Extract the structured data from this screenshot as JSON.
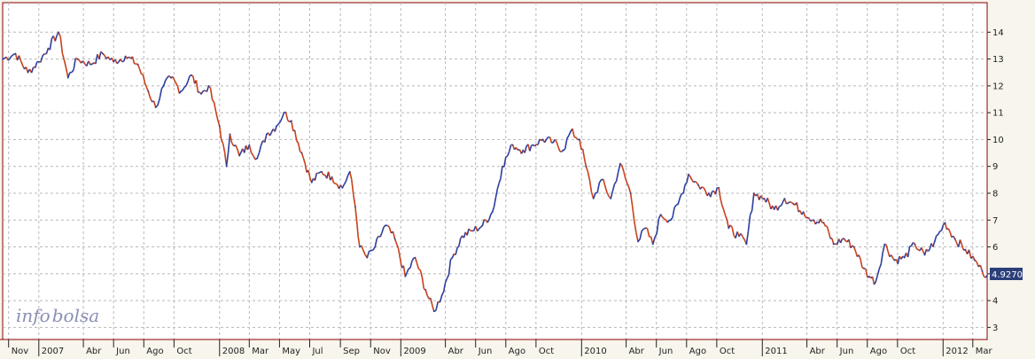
{
  "logo": {
    "part1": "info",
    "part2": "bolsa"
  },
  "last_price": "4.9270",
  "colors": {
    "background": "#f7f5ec",
    "plot_background": "#ffffff",
    "up": "#2c3e9e",
    "down": "#c8401a",
    "frame": "#8b0000",
    "grid": "#b8b8b8",
    "price_box": "#2b3f7a"
  },
  "chart_data": {
    "type": "line",
    "title": "",
    "xlabel": "",
    "ylabel": "",
    "ylim": [
      2.55,
      15.1
    ],
    "yticks": [
      3,
      4,
      5,
      6,
      7,
      8,
      9,
      10,
      11,
      12,
      13,
      14
    ],
    "x_range": [
      "2006-10-20",
      "2012-03-30"
    ],
    "x_tick_labels": [
      {
        "date": "2006-11-01",
        "label": "Nov",
        "year_start": false
      },
      {
        "date": "2007-01-01",
        "label": "2007",
        "year_start": true
      },
      {
        "date": "2007-04-01",
        "label": "Abr",
        "year_start": false
      },
      {
        "date": "2007-06-01",
        "label": "Jun",
        "year_start": false
      },
      {
        "date": "2007-08-01",
        "label": "Ago",
        "year_start": false
      },
      {
        "date": "2007-10-01",
        "label": "Oct",
        "year_start": false
      },
      {
        "date": "2008-01-01",
        "label": "2008",
        "year_start": true
      },
      {
        "date": "2008-03-01",
        "label": "Mar",
        "year_start": false
      },
      {
        "date": "2008-05-01",
        "label": "May",
        "year_start": false
      },
      {
        "date": "2008-07-01",
        "label": "Jul",
        "year_start": false
      },
      {
        "date": "2008-09-01",
        "label": "Sep",
        "year_start": false
      },
      {
        "date": "2008-11-01",
        "label": "Nov",
        "year_start": false
      },
      {
        "date": "2009-01-01",
        "label": "2009",
        "year_start": true
      },
      {
        "date": "2009-04-01",
        "label": "Abr",
        "year_start": false
      },
      {
        "date": "2009-06-01",
        "label": "Jun",
        "year_start": false
      },
      {
        "date": "2009-08-01",
        "label": "Ago",
        "year_start": false
      },
      {
        "date": "2009-10-01",
        "label": "Oct",
        "year_start": false
      },
      {
        "date": "2010-01-01",
        "label": "2010",
        "year_start": true
      },
      {
        "date": "2010-04-01",
        "label": "Abr",
        "year_start": false
      },
      {
        "date": "2010-06-01",
        "label": "Jun",
        "year_start": false
      },
      {
        "date": "2010-08-01",
        "label": "Ago",
        "year_start": false
      },
      {
        "date": "2010-10-01",
        "label": "Oct",
        "year_start": false
      },
      {
        "date": "2011-01-01",
        "label": "2011",
        "year_start": true
      },
      {
        "date": "2011-04-01",
        "label": "Abr",
        "year_start": false
      },
      {
        "date": "2011-06-01",
        "label": "Jun",
        "year_start": false
      },
      {
        "date": "2011-08-01",
        "label": "Ago",
        "year_start": false
      },
      {
        "date": "2011-10-01",
        "label": "Oct",
        "year_start": false
      },
      {
        "date": "2012-01-01",
        "label": "2012",
        "year_start": true
      },
      {
        "date": "2012-03-01",
        "label": "Mar",
        "year_start": false
      }
    ],
    "grid": true,
    "y_axis_position": "right",
    "series": [
      {
        "x": [
          "2006-10-20",
          "2006-11-15",
          "2006-12-10",
          "2007-01-01",
          "2007-01-20",
          "2007-02-10",
          "2007-03-01",
          "2007-03-20",
          "2007-04-15",
          "2007-05-10",
          "2007-06-01",
          "2007-06-25",
          "2007-07-20",
          "2007-08-10",
          "2007-08-25",
          "2007-09-10",
          "2007-09-25",
          "2007-10-15",
          "2007-11-05",
          "2007-11-25",
          "2007-12-10",
          "2008-01-01",
          "2008-01-15",
          "2008-01-22",
          "2008-02-10",
          "2008-03-01",
          "2008-03-17",
          "2008-04-05",
          "2008-04-25",
          "2008-05-10",
          "2008-05-25",
          "2008-06-15",
          "2008-07-05",
          "2008-07-25",
          "2008-08-15",
          "2008-09-05",
          "2008-09-20",
          "2008-10-01",
          "2008-10-10",
          "2008-10-25",
          "2008-11-10",
          "2008-12-01",
          "2008-12-20",
          "2009-01-10",
          "2009-01-30",
          "2009-02-20",
          "2009-03-09",
          "2009-03-25",
          "2009-04-15",
          "2009-05-05",
          "2009-05-25",
          "2009-06-15",
          "2009-07-05",
          "2009-07-25",
          "2009-08-15",
          "2009-09-05",
          "2009-09-25",
          "2009-10-15",
          "2009-11-05",
          "2009-11-25",
          "2009-12-10",
          "2009-12-28",
          "2010-01-10",
          "2010-01-25",
          "2010-02-10",
          "2010-03-01",
          "2010-03-20",
          "2010-04-10",
          "2010-04-25",
          "2010-05-10",
          "2010-05-25",
          "2010-06-10",
          "2010-06-30",
          "2010-07-15",
          "2010-08-05",
          "2010-08-25",
          "2010-09-15",
          "2010-10-05",
          "2010-10-25",
          "2010-11-15",
          "2010-11-30",
          "2010-12-15",
          "2011-01-05",
          "2011-01-25",
          "2011-02-15",
          "2011-03-05",
          "2011-03-25",
          "2011-04-15",
          "2011-05-05",
          "2011-05-25",
          "2011-06-15",
          "2011-07-05",
          "2011-07-25",
          "2011-08-05",
          "2011-08-18",
          "2011-09-05",
          "2011-09-25",
          "2011-10-15",
          "2011-11-05",
          "2011-11-25",
          "2011-12-15",
          "2012-01-05",
          "2012-01-25",
          "2012-02-15",
          "2012-03-05",
          "2012-03-20",
          "2012-03-30"
        ],
        "y": [
          13.0,
          13.2,
          12.5,
          12.9,
          13.4,
          14.0,
          12.3,
          13.0,
          12.8,
          13.2,
          12.9,
          13.1,
          12.8,
          11.8,
          11.2,
          12.0,
          12.3,
          11.8,
          12.4,
          11.7,
          12.0,
          10.5,
          9.0,
          10.2,
          9.4,
          9.8,
          9.3,
          10.2,
          10.5,
          11.0,
          10.7,
          9.5,
          8.4,
          8.8,
          8.6,
          8.2,
          8.8,
          7.5,
          6.0,
          5.6,
          6.0,
          6.8,
          6.3,
          4.9,
          5.6,
          4.4,
          3.6,
          4.2,
          5.6,
          6.4,
          6.6,
          6.8,
          7.3,
          9.0,
          9.8,
          9.6,
          9.8,
          10.0,
          9.9,
          9.6,
          10.3,
          10.0,
          9.0,
          7.8,
          8.5,
          7.8,
          9.1,
          8.0,
          6.2,
          6.7,
          6.1,
          7.2,
          7.0,
          7.6,
          8.7,
          8.3,
          8.0,
          8.2,
          6.7,
          6.4,
          6.1,
          8.0,
          7.8,
          7.4,
          7.8,
          7.6,
          7.3,
          7.0,
          6.9,
          6.1,
          6.3,
          6.0,
          5.2,
          4.9,
          4.7,
          6.1,
          5.5,
          5.6,
          6.1,
          5.7,
          6.2,
          6.9,
          6.3,
          5.9,
          5.5,
          5.1,
          4.93
        ]
      }
    ]
  }
}
